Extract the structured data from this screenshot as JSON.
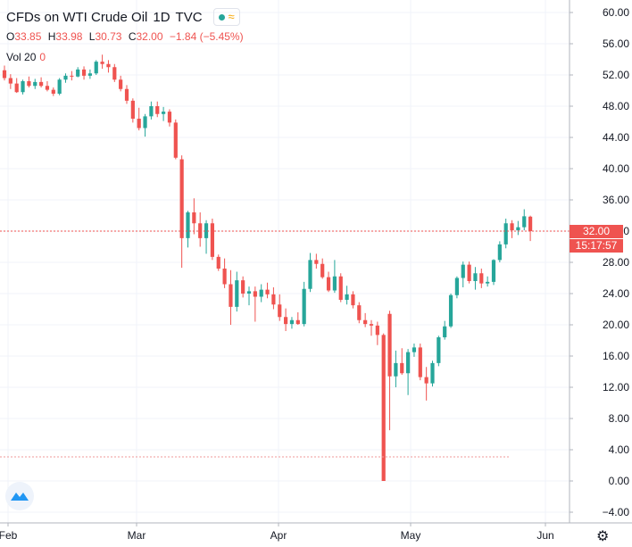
{
  "header": {
    "title": "CFDs on WTI Crude Oil",
    "interval": "1D",
    "exchange": "TVC",
    "status_icon": "market-status-dot-icon",
    "wave_icon": "replay-wave-icon"
  },
  "ohlc": {
    "open_label": "O",
    "open": "33.85",
    "high_label": "H",
    "high": "33.98",
    "low_label": "L",
    "low": "30.73",
    "close_label": "C",
    "close": "32.00",
    "change": "−1.84 (−5.45%)"
  },
  "volume": {
    "label": "Vol 20",
    "value": "0"
  },
  "price_tags": {
    "last": "32.00",
    "countdown": "15:17:57"
  },
  "colors": {
    "up": "#26a69a",
    "down": "#ef5350",
    "grid": "#f0f3fa",
    "axis": "#b2b5be"
  },
  "chart_data": {
    "type": "candlestick",
    "title": "CFDs on WTI Crude Oil",
    "ylim": [
      -4,
      60
    ],
    "y_ticks": [
      "60.00",
      "56.00",
      "52.00",
      "48.00",
      "44.00",
      "40.00",
      "36.00",
      "32.00",
      "28.00",
      "24.00",
      "20.00",
      "16.00",
      "12.00",
      "8.00",
      "4.00",
      "0.00",
      "−4.00"
    ],
    "x_ticks": [
      "Feb",
      "Mar",
      "Apr",
      "May",
      "Jun"
    ],
    "last_price": 32.0,
    "series": [
      {
        "name": "price",
        "candles": [
          [
            52.6,
            53.2,
            51.3,
            51.6
          ],
          [
            51.6,
            52.1,
            50.2,
            50.9
          ],
          [
            50.9,
            51.6,
            49.7,
            49.8
          ],
          [
            49.8,
            51.4,
            49.5,
            51.2
          ],
          [
            51.2,
            51.8,
            50.4,
            50.6
          ],
          [
            50.6,
            51.5,
            50.2,
            51.1
          ],
          [
            51.1,
            51.7,
            50.4,
            50.6
          ],
          [
            50.6,
            51.2,
            49.9,
            50.1
          ],
          [
            50.1,
            50.4,
            49.3,
            49.6
          ],
          [
            49.6,
            51.6,
            49.4,
            51.4
          ],
          [
            51.4,
            52.2,
            51.0,
            51.9
          ],
          [
            51.9,
            52.5,
            51.3,
            51.8
          ],
          [
            51.8,
            53.0,
            51.7,
            52.7
          ],
          [
            52.7,
            53.1,
            51.4,
            51.9
          ],
          [
            51.9,
            52.7,
            51.5,
            52.2
          ],
          [
            52.2,
            53.9,
            52.0,
            53.7
          ],
          [
            53.7,
            54.6,
            52.8,
            53.4
          ],
          [
            53.4,
            53.9,
            52.3,
            53.0
          ],
          [
            53.0,
            53.4,
            51.1,
            51.4
          ],
          [
            51.4,
            51.9,
            49.9,
            50.2
          ],
          [
            50.2,
            50.7,
            48.3,
            48.7
          ],
          [
            48.7,
            49.0,
            45.9,
            46.4
          ],
          [
            46.4,
            47.8,
            44.9,
            45.2
          ],
          [
            45.2,
            47.0,
            44.1,
            46.7
          ],
          [
            46.7,
            48.6,
            46.3,
            48.0
          ],
          [
            48.0,
            48.6,
            46.6,
            47.0
          ],
          [
            47.0,
            47.9,
            46.1,
            47.3
          ],
          [
            47.3,
            47.6,
            45.4,
            45.9
          ],
          [
            45.9,
            46.3,
            41.2,
            41.4
          ],
          [
            41.2,
            41.7,
            27.3,
            31.1
          ],
          [
            31.1,
            34.6,
            29.9,
            34.4
          ],
          [
            34.4,
            36.2,
            31.6,
            33.0
          ],
          [
            33.0,
            34.4,
            30.0,
            31.1
          ],
          [
            31.1,
            33.4,
            29.1,
            33.0
          ],
          [
            33.0,
            33.6,
            28.3,
            28.7
          ],
          [
            28.7,
            29.0,
            26.9,
            27.2
          ],
          [
            27.2,
            28.5,
            24.7,
            25.2
          ],
          [
            25.2,
            27.0,
            20.0,
            22.3
          ],
          [
            22.3,
            26.8,
            21.7,
            25.7
          ],
          [
            25.7,
            26.2,
            23.5,
            24.0
          ],
          [
            24.0,
            24.9,
            22.5,
            24.3
          ],
          [
            24.3,
            24.9,
            20.4,
            23.6
          ],
          [
            23.6,
            25.2,
            22.9,
            24.5
          ],
          [
            24.5,
            25.4,
            23.4,
            23.9
          ],
          [
            23.9,
            24.8,
            22.0,
            22.6
          ],
          [
            22.6,
            23.9,
            20.5,
            21.0
          ],
          [
            21.0,
            22.1,
            19.2,
            20.1
          ],
          [
            20.1,
            21.0,
            19.5,
            20.6
          ],
          [
            20.6,
            21.6,
            20.0,
            20.1
          ],
          [
            20.1,
            25.5,
            19.8,
            24.6
          ],
          [
            24.6,
            29.2,
            24.2,
            28.3
          ],
          [
            28.3,
            29.1,
            27.2,
            27.8
          ],
          [
            27.8,
            28.5,
            25.9,
            26.1
          ],
          [
            26.1,
            26.8,
            24.2,
            24.4
          ],
          [
            24.4,
            28.3,
            24.1,
            26.2
          ],
          [
            26.2,
            26.6,
            22.9,
            23.2
          ],
          [
            23.2,
            25.0,
            22.6,
            23.9
          ],
          [
            23.9,
            24.3,
            22.1,
            22.5
          ],
          [
            22.5,
            22.9,
            20.2,
            20.6
          ],
          [
            20.6,
            21.5,
            19.7,
            20.1
          ],
          [
            20.1,
            20.6,
            18.6,
            19.9
          ],
          [
            19.9,
            20.4,
            17.4,
            18.7
          ],
          [
            18.7,
            18.9,
            0.0,
            0.0
          ],
          [
            21.4,
            21.8,
            6.5,
            13.4
          ],
          [
            13.4,
            16.7,
            12.0,
            15.1
          ],
          [
            15.1,
            17.0,
            13.6,
            13.8
          ],
          [
            13.8,
            16.9,
            11.0,
            16.5
          ],
          [
            16.5,
            17.6,
            15.9,
            17.1
          ],
          [
            17.1,
            17.6,
            12.9,
            13.3
          ],
          [
            13.3,
            14.6,
            10.3,
            12.5
          ],
          [
            12.5,
            15.4,
            12.1,
            15.1
          ],
          [
            15.1,
            18.6,
            14.7,
            18.4
          ],
          [
            18.4,
            20.5,
            18.1,
            19.8
          ],
          [
            19.8,
            24.0,
            19.6,
            23.8
          ],
          [
            23.8,
            26.2,
            23.4,
            26.0
          ],
          [
            26.0,
            28.1,
            24.8,
            27.7
          ],
          [
            27.7,
            28.1,
            25.3,
            25.6
          ],
          [
            25.6,
            27.4,
            24.5,
            26.6
          ],
          [
            26.6,
            27.2,
            24.7,
            25.3
          ],
          [
            25.3,
            26.2,
            24.9,
            25.5
          ],
          [
            25.5,
            28.4,
            25.1,
            28.3
          ],
          [
            28.3,
            30.7,
            28.0,
            30.3
          ],
          [
            30.3,
            33.6,
            29.8,
            33.0
          ],
          [
            33.0,
            33.4,
            31.1,
            32.1
          ],
          [
            32.1,
            33.3,
            31.5,
            32.5
          ],
          [
            32.5,
            34.8,
            32.1,
            33.9
          ],
          [
            33.85,
            33.98,
            30.73,
            32.0
          ]
        ]
      }
    ]
  }
}
